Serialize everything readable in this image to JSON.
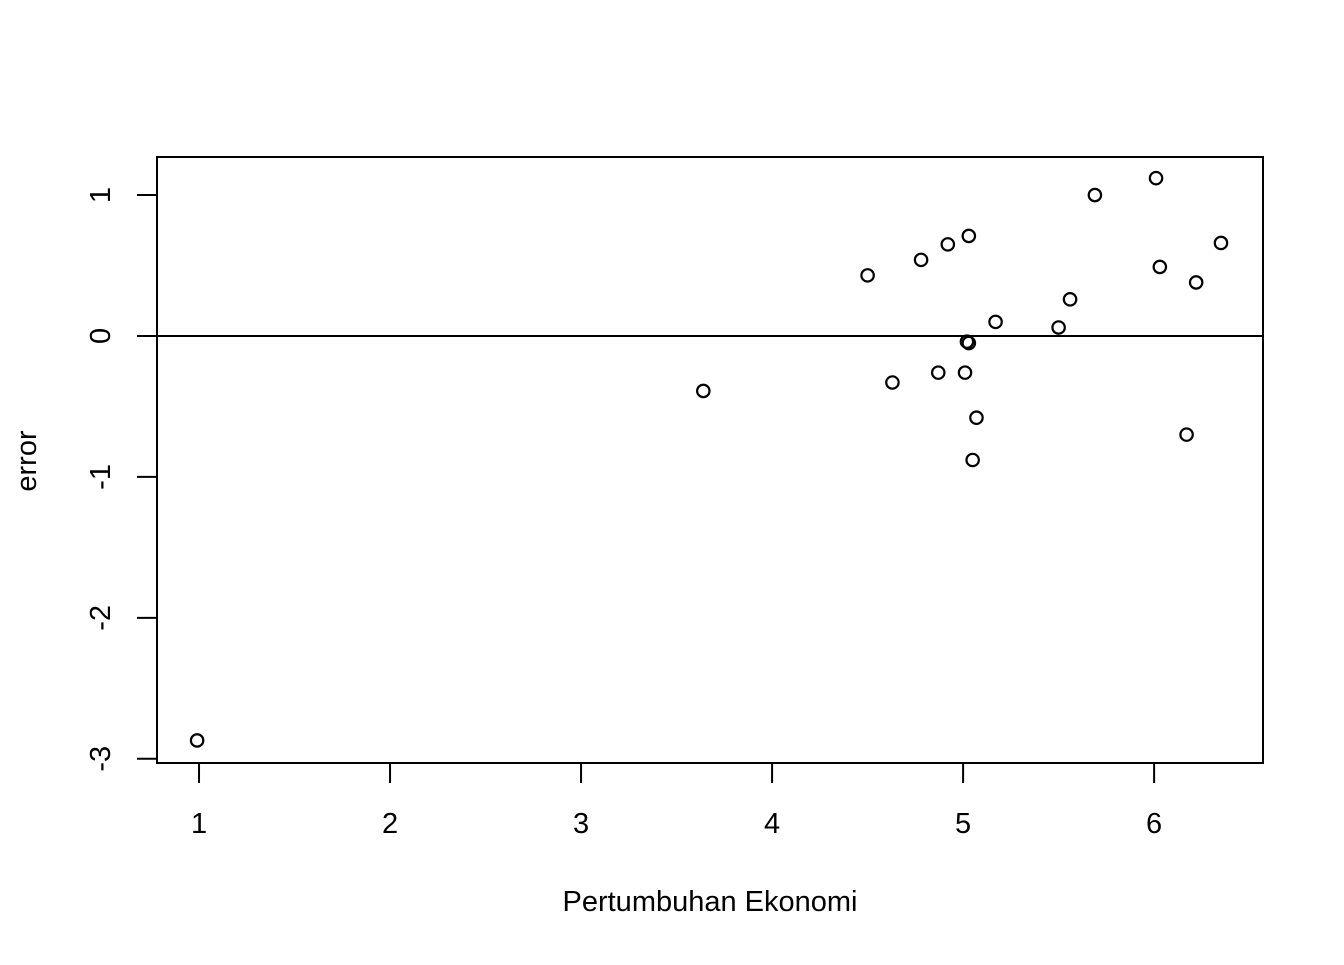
{
  "chart_data": {
    "type": "scatter",
    "title": "",
    "xlabel": "Pertumbuhan Ekonomi",
    "ylabel": "error",
    "xlim": [
      0.78,
      6.57
    ],
    "ylim": [
      -3.03,
      1.27
    ],
    "x_ticks": [
      1,
      2,
      3,
      4,
      5,
      6
    ],
    "y_ticks": [
      -3,
      -2,
      -1,
      0,
      1
    ],
    "x_tick_labels": [
      "1",
      "2",
      "3",
      "4",
      "5",
      "6"
    ],
    "y_tick_labels": [
      "-3",
      "-2",
      "-1",
      "0",
      "1"
    ],
    "reference_line": {
      "orientation": "horizontal",
      "y": 0
    },
    "marker": "open-circle",
    "grid": false,
    "legend": "none",
    "series": [
      {
        "points": [
          {
            "x": 0.99,
            "y": -2.87
          },
          {
            "x": 3.64,
            "y": -0.39
          },
          {
            "x": 4.5,
            "y": 0.43
          },
          {
            "x": 4.63,
            "y": -0.33
          },
          {
            "x": 4.78,
            "y": 0.54
          },
          {
            "x": 4.87,
            "y": -0.26
          },
          {
            "x": 4.92,
            "y": 0.65
          },
          {
            "x": 5.01,
            "y": -0.26
          },
          {
            "x": 5.02,
            "y": -0.04
          },
          {
            "x": 5.03,
            "y": -0.05
          },
          {
            "x": 5.03,
            "y": 0.71
          },
          {
            "x": 5.05,
            "y": -0.88
          },
          {
            "x": 5.07,
            "y": -0.58
          },
          {
            "x": 5.17,
            "y": 0.1
          },
          {
            "x": 5.5,
            "y": 0.06
          },
          {
            "x": 5.56,
            "y": 0.26
          },
          {
            "x": 5.69,
            "y": 1.0
          },
          {
            "x": 6.01,
            "y": 1.12
          },
          {
            "x": 6.03,
            "y": 0.49
          },
          {
            "x": 6.17,
            "y": -0.7
          },
          {
            "x": 6.22,
            "y": 0.38
          },
          {
            "x": 6.35,
            "y": 0.66
          }
        ]
      }
    ]
  }
}
